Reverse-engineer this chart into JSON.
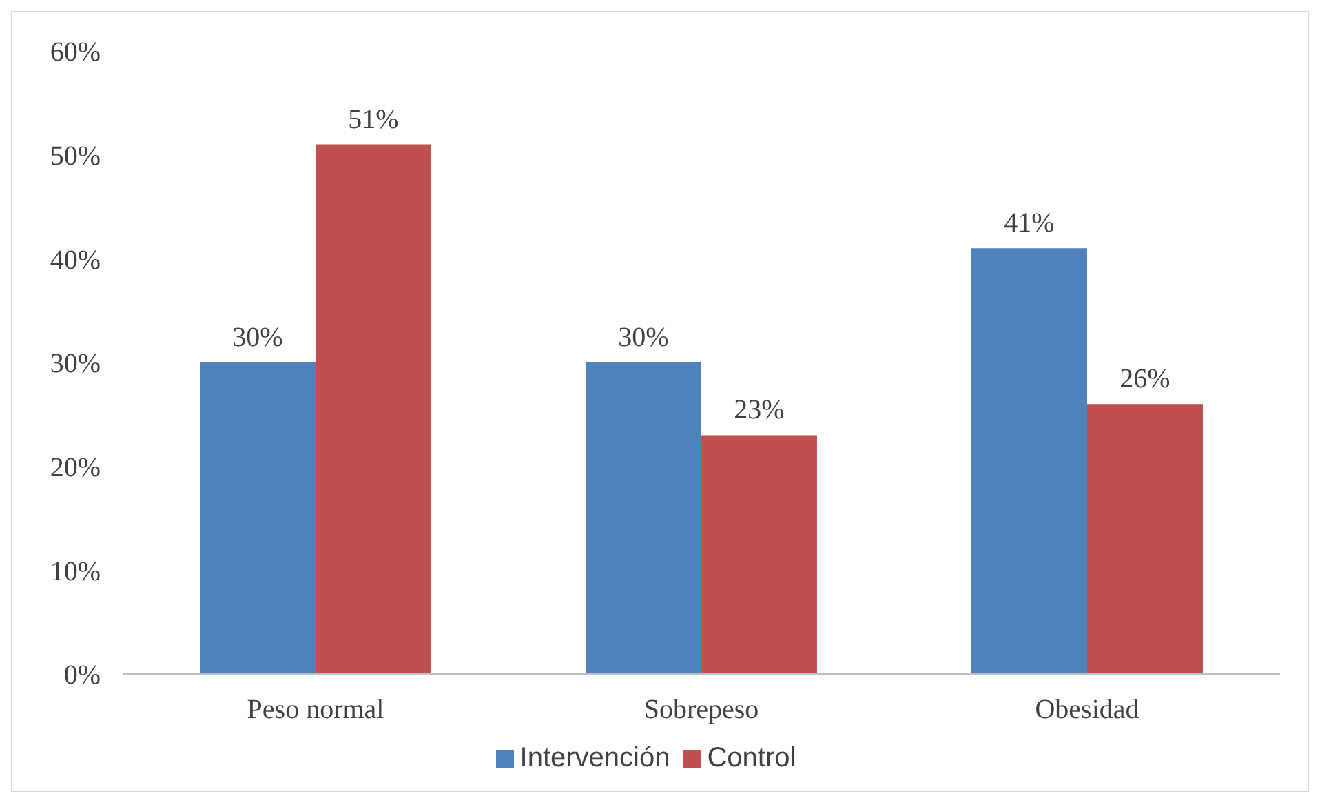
{
  "chart_data": {
    "type": "bar",
    "categories": [
      "Peso normal",
      "Sobrepeso",
      "Obesidad"
    ],
    "series": [
      {
        "name": "Intervención",
        "color": "#4f81bd",
        "values": [
          30,
          30,
          41
        ],
        "value_labels": [
          "30%",
          "30%",
          "41%"
        ]
      },
      {
        "name": "Control",
        "color": "#c0504d",
        "values": [
          51,
          23,
          26
        ],
        "value_labels": [
          "51%",
          "23%",
          "26%"
        ]
      }
    ],
    "ylim": [
      0,
      60
    ],
    "yticks": [
      {
        "value": 0,
        "label": "0%"
      },
      {
        "value": 10,
        "label": "10%"
      },
      {
        "value": 20,
        "label": "20%"
      },
      {
        "value": 30,
        "label": "30%"
      },
      {
        "value": 40,
        "label": "40%"
      },
      {
        "value": 50,
        "label": "50%"
      },
      {
        "value": 60,
        "label": "60%"
      }
    ],
    "legend": "bottom"
  }
}
